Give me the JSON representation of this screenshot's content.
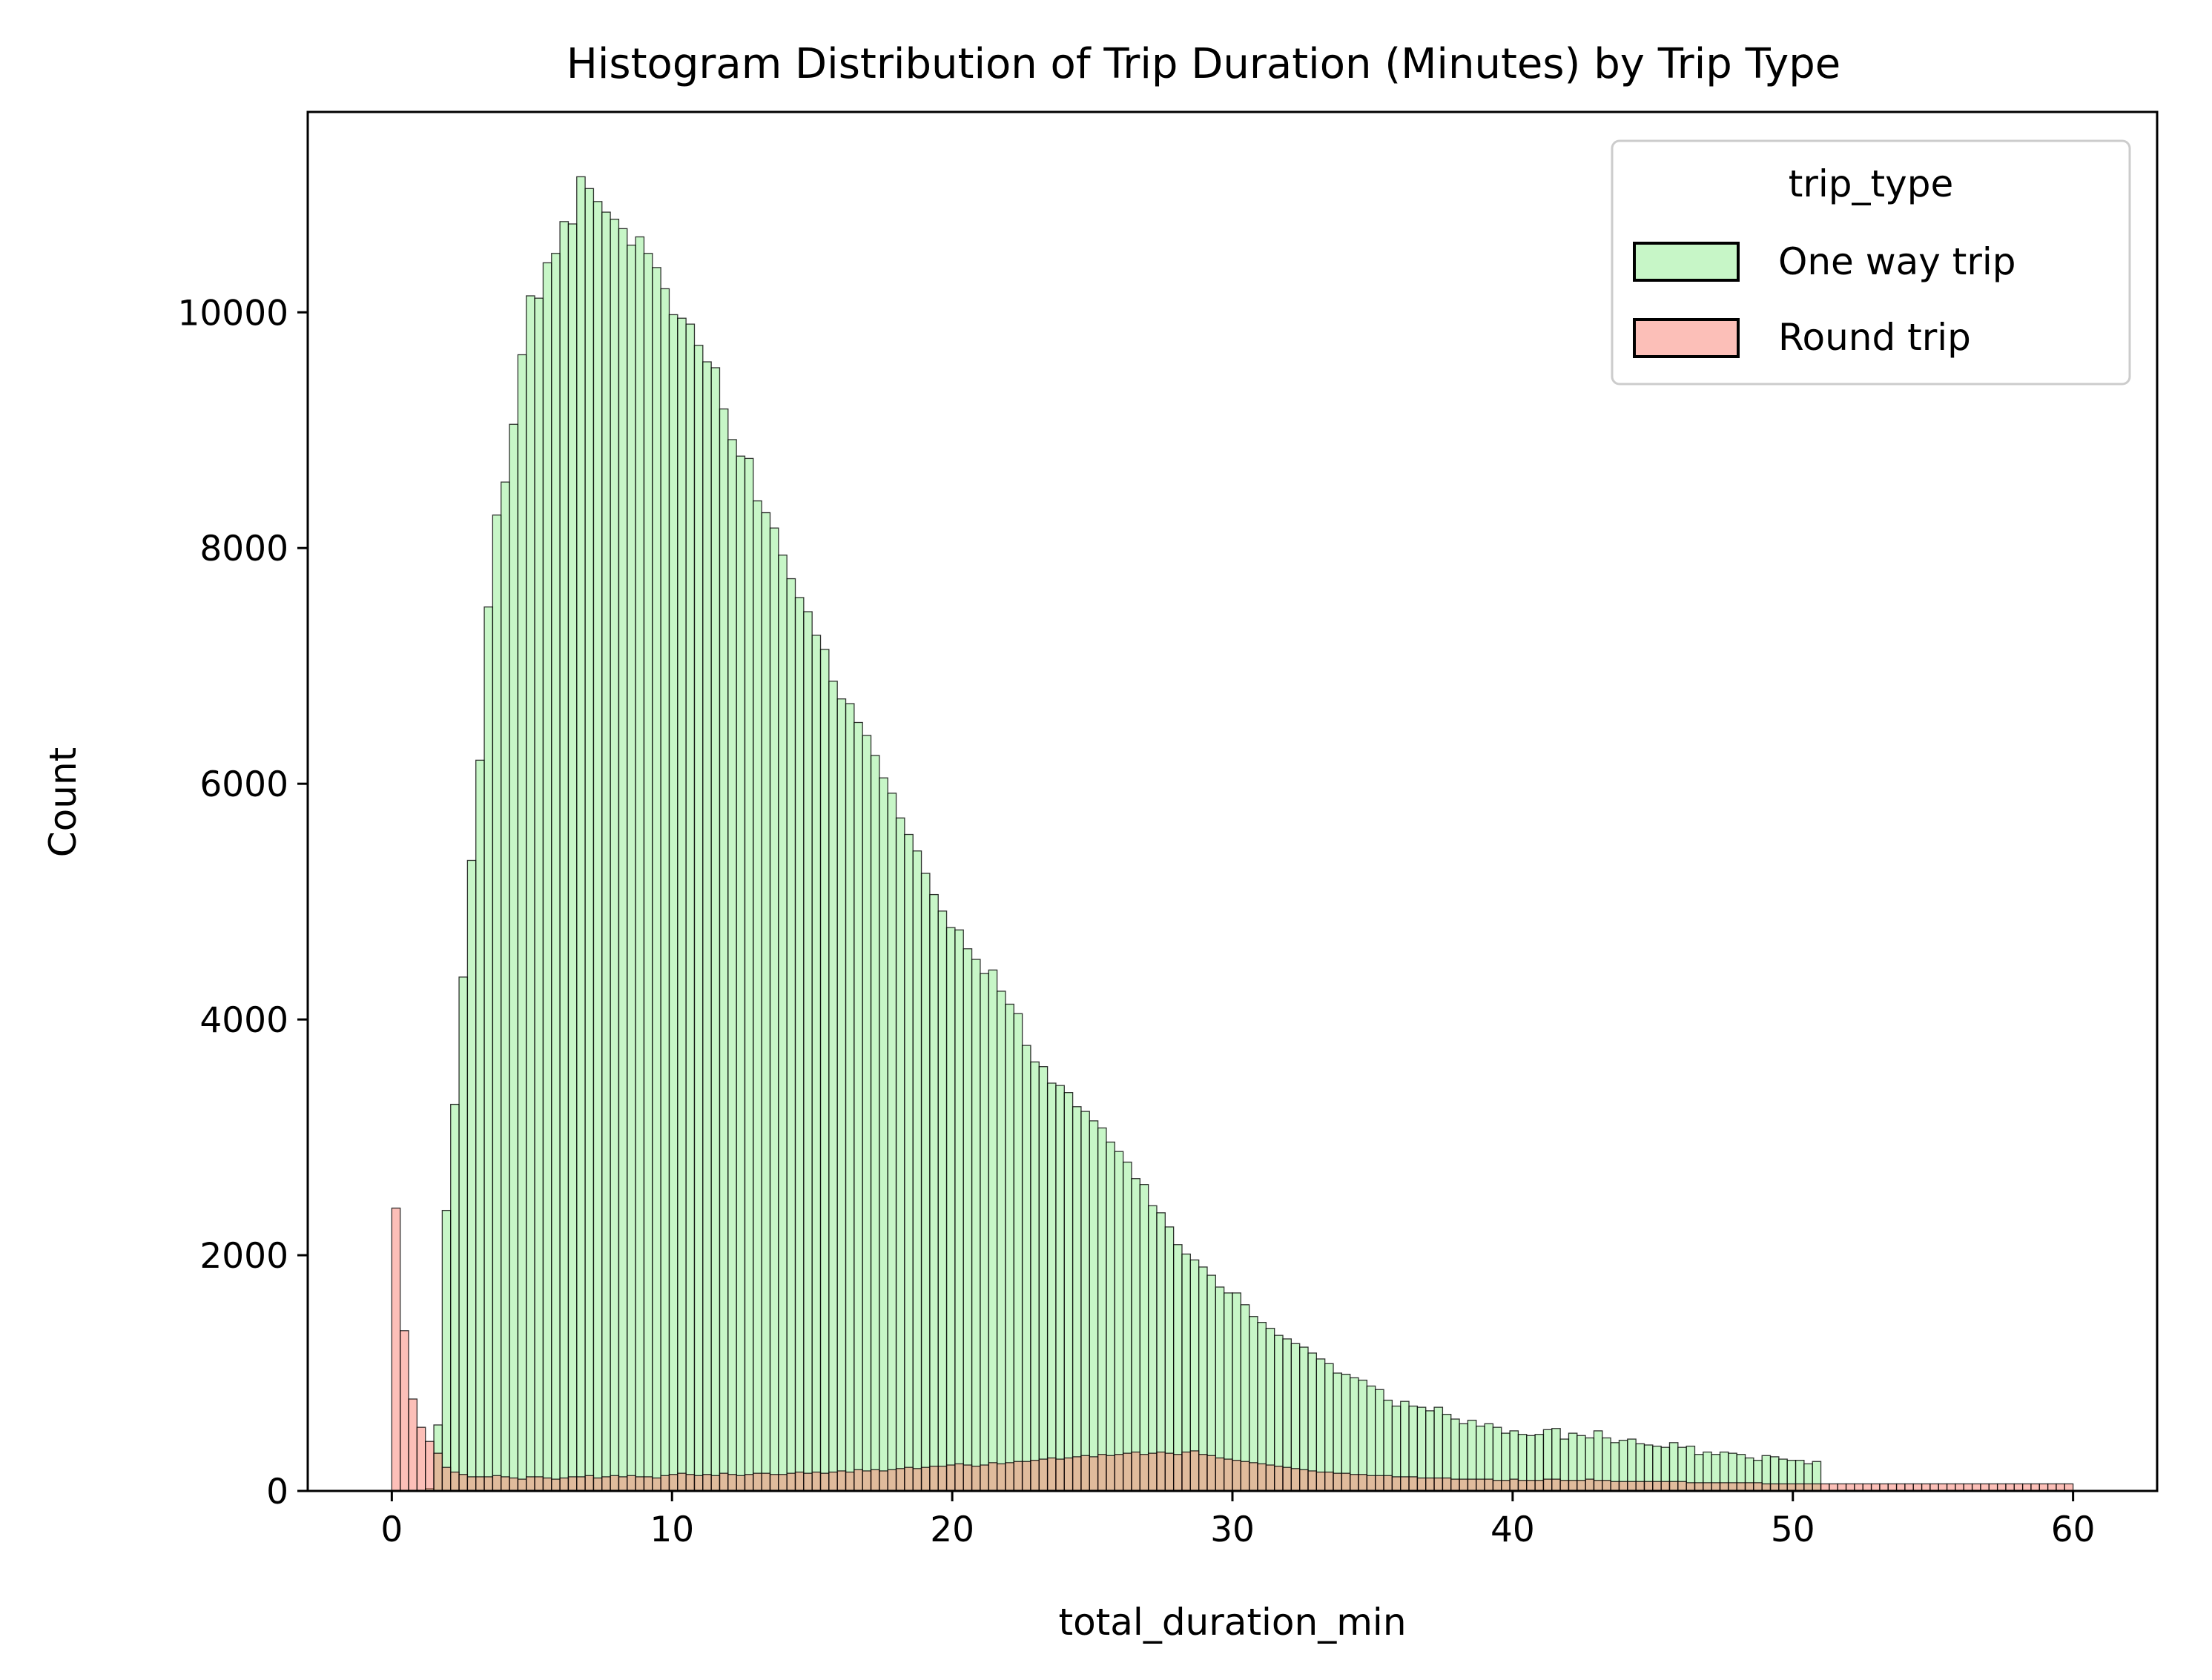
{
  "chart_data": {
    "type": "bar",
    "title": "Histogram Distribution of Trip Duration (Minutes) by Trip Type",
    "xlabel": "total_duration_min",
    "ylabel": "Count",
    "xlim": [
      -3,
      63
    ],
    "ylim": [
      0,
      11700
    ],
    "xticks": [
      0,
      10,
      20,
      30,
      40,
      50,
      60
    ],
    "yticks": [
      0,
      2000,
      4000,
      6000,
      8000,
      10000
    ],
    "bin_width": 0.3,
    "bin_start": 0,
    "legend": {
      "title": "trip_type",
      "position": "upper right"
    },
    "grid": false,
    "series": [
      {
        "name": "One way trip",
        "color": "#90ee90",
        "values": [
          0,
          0,
          0,
          0,
          20,
          560,
          2380,
          3280,
          4360,
          5350,
          6200,
          7500,
          8280,
          8560,
          9050,
          9640,
          10140,
          10120,
          10420,
          10500,
          10770,
          10750,
          11150,
          11050,
          10940,
          10850,
          10790,
          10710,
          10570,
          10640,
          10500,
          10380,
          10200,
          9980,
          9950,
          9900,
          9720,
          9580,
          9530,
          9180,
          8920,
          8780,
          8760,
          8400,
          8300,
          8170,
          7940,
          7740,
          7580,
          7460,
          7260,
          7140,
          6870,
          6720,
          6680,
          6520,
          6410,
          6240,
          6050,
          5920,
          5710,
          5570,
          5430,
          5240,
          5060,
          4920,
          4780,
          4760,
          4600,
          4510,
          4390,
          4420,
          4240,
          4130,
          4050,
          3780,
          3640,
          3600,
          3460,
          3440,
          3380,
          3260,
          3220,
          3140,
          3080,
          2960,
          2880,
          2790,
          2650,
          2600,
          2420,
          2360,
          2240,
          2090,
          2010,
          1960,
          1900,
          1830,
          1730,
          1680,
          1680,
          1580,
          1480,
          1430,
          1380,
          1320,
          1290,
          1250,
          1220,
          1170,
          1120,
          1080,
          1000,
          990,
          960,
          940,
          890,
          860,
          770,
          720,
          760,
          720,
          710,
          680,
          710,
          650,
          610,
          570,
          600,
          550,
          570,
          540,
          490,
          510,
          480,
          470,
          480,
          520,
          530,
          440,
          490,
          470,
          450,
          510,
          450,
          410,
          430,
          440,
          400,
          390,
          380,
          370,
          410,
          370,
          380,
          310,
          330,
          310,
          330,
          320,
          310,
          280,
          260,
          300,
          290,
          270,
          260,
          260,
          230,
          250
        ],
        "bar_labels": []
      },
      {
        "name": "Round trip",
        "color": "#fa8072",
        "values": [
          2400,
          1360,
          780,
          540,
          420,
          320,
          200,
          160,
          140,
          120,
          120,
          120,
          130,
          120,
          110,
          100,
          120,
          120,
          110,
          100,
          110,
          120,
          120,
          130,
          110,
          120,
          130,
          120,
          130,
          120,
          120,
          110,
          130,
          140,
          150,
          140,
          130,
          140,
          130,
          150,
          140,
          130,
          140,
          150,
          150,
          140,
          140,
          150,
          160,
          150,
          160,
          150,
          160,
          170,
          160,
          180,
          170,
          180,
          170,
          180,
          190,
          200,
          190,
          200,
          210,
          210,
          220,
          230,
          220,
          210,
          220,
          240,
          230,
          240,
          250,
          250,
          260,
          270,
          280,
          270,
          280,
          290,
          300,
          290,
          310,
          300,
          310,
          320,
          330,
          310,
          320,
          330,
          320,
          310,
          330,
          340,
          310,
          300,
          280,
          270,
          260,
          250,
          240,
          230,
          220,
          210,
          200,
          190,
          180,
          170,
          160,
          160,
          150,
          150,
          140,
          140,
          130,
          130,
          130,
          120,
          120,
          120,
          110,
          110,
          110,
          110,
          100,
          100,
          100,
          100,
          100,
          90,
          90,
          100,
          90,
          90,
          90,
          100,
          100,
          90,
          90,
          90,
          100,
          90,
          90,
          80,
          80,
          80,
          80,
          80,
          80,
          80,
          80,
          80,
          70,
          70,
          70,
          70,
          70,
          70,
          70,
          70,
          70,
          60,
          60,
          60,
          60,
          60,
          60,
          60,
          60,
          60,
          60,
          60,
          60,
          60,
          60,
          60,
          60,
          60,
          60,
          60,
          60,
          60,
          60,
          60,
          60,
          60,
          60,
          60,
          60,
          60,
          60,
          60,
          60,
          60,
          60,
          60,
          60,
          60
        ]
      }
    ]
  }
}
